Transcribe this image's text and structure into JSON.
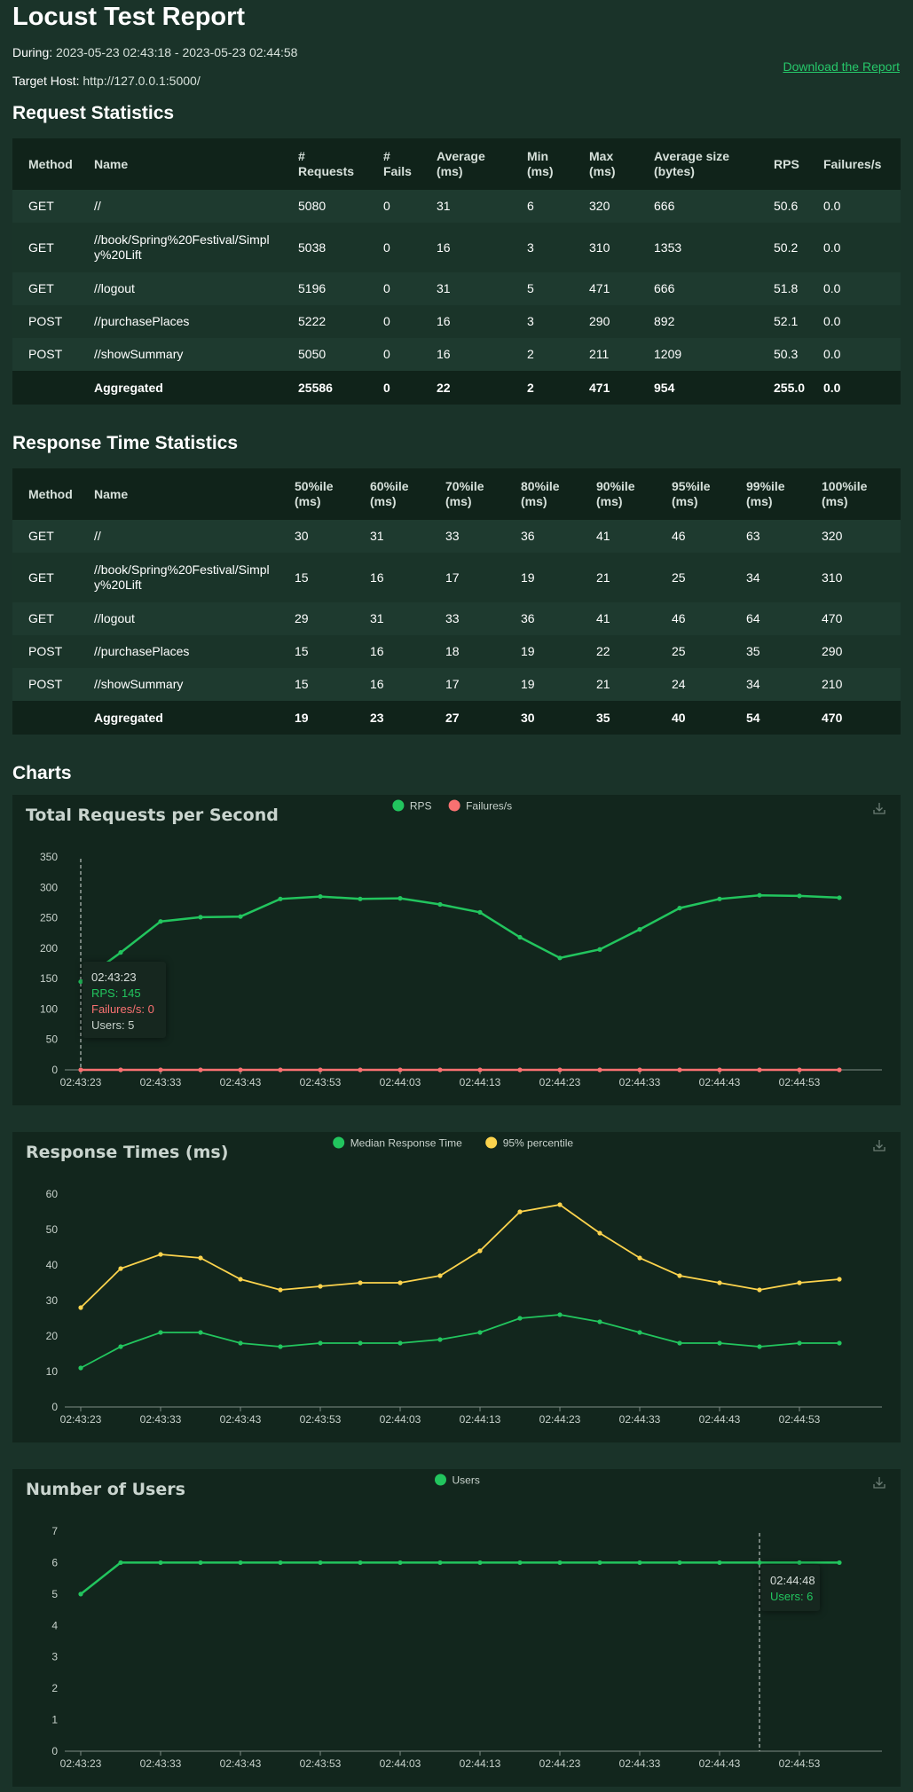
{
  "header": {
    "title": "Locust Test Report",
    "during_label": "During:",
    "during_value": "2023-05-23 02:43:18 - 2023-05-23 02:44:58",
    "target_label": "Target Host:",
    "target_value": "http://127.0.0.1:5000/",
    "download_label": "Download the Report"
  },
  "request_stats": {
    "title": "Request Statistics",
    "headers": [
      "Method",
      "Name",
      "# Requests",
      "# Fails",
      "Average (ms)",
      "Min (ms)",
      "Max (ms)",
      "Average size (bytes)",
      "RPS",
      "Failures/s"
    ],
    "rows": [
      [
        "GET",
        "//",
        "5080",
        "0",
        "31",
        "6",
        "320",
        "666",
        "50.6",
        "0.0"
      ],
      [
        "GET",
        "//book/Spring%20Festival/Simply%20Lift",
        "5038",
        "0",
        "16",
        "3",
        "310",
        "1353",
        "50.2",
        "0.0"
      ],
      [
        "GET",
        "//logout",
        "5196",
        "0",
        "31",
        "5",
        "471",
        "666",
        "51.8",
        "0.0"
      ],
      [
        "POST",
        "//purchasePlaces",
        "5222",
        "0",
        "16",
        "3",
        "290",
        "892",
        "52.1",
        "0.0"
      ],
      [
        "POST",
        "//showSummary",
        "5050",
        "0",
        "16",
        "2",
        "211",
        "1209",
        "50.3",
        "0.0"
      ]
    ],
    "aggregated": [
      "",
      "Aggregated",
      "25586",
      "0",
      "22",
      "2",
      "471",
      "954",
      "255.0",
      "0.0"
    ]
  },
  "response_stats": {
    "title": "Response Time Statistics",
    "headers": [
      "Method",
      "Name",
      "50%ile (ms)",
      "60%ile (ms)",
      "70%ile (ms)",
      "80%ile (ms)",
      "90%ile (ms)",
      "95%ile (ms)",
      "99%ile (ms)",
      "100%ile (ms)"
    ],
    "rows": [
      [
        "GET",
        "//",
        "30",
        "31",
        "33",
        "36",
        "41",
        "46",
        "63",
        "320"
      ],
      [
        "GET",
        "//book/Spring%20Festival/Simply%20Lift",
        "15",
        "16",
        "17",
        "19",
        "21",
        "25",
        "34",
        "310"
      ],
      [
        "GET",
        "//logout",
        "29",
        "31",
        "33",
        "36",
        "41",
        "46",
        "64",
        "470"
      ],
      [
        "POST",
        "//purchasePlaces",
        "15",
        "16",
        "18",
        "19",
        "22",
        "25",
        "35",
        "290"
      ],
      [
        "POST",
        "//showSummary",
        "15",
        "16",
        "17",
        "19",
        "21",
        "24",
        "34",
        "210"
      ]
    ],
    "aggregated": [
      "",
      "Aggregated",
      "19",
      "23",
      "27",
      "30",
      "35",
      "40",
      "54",
      "470"
    ]
  },
  "charts_title": "Charts",
  "colors": {
    "green": "#22c55e",
    "red": "#f87171",
    "yellow": "#fcd34d",
    "grid": "#4d5f57"
  },
  "icons": {
    "download": "download-icon"
  },
  "chart_data": [
    {
      "type": "line",
      "title": "Total Requests per Second",
      "x": [
        "02:43:23",
        "02:43:28",
        "02:43:33",
        "02:43:38",
        "02:43:43",
        "02:43:48",
        "02:43:53",
        "02:43:58",
        "02:44:03",
        "02:44:08",
        "02:44:13",
        "02:44:18",
        "02:44:23",
        "02:44:28",
        "02:44:33",
        "02:44:38",
        "02:44:43",
        "02:44:48",
        "02:44:53",
        "02:44:58"
      ],
      "xticks": [
        "02:43:23",
        "02:43:33",
        "02:43:43",
        "02:43:53",
        "02:44:03",
        "02:44:13",
        "02:44:23",
        "02:44:33",
        "02:44:43",
        "02:44:53"
      ],
      "ylim": [
        0,
        350
      ],
      "yticks": [
        0,
        50,
        100,
        150,
        200,
        250,
        300,
        350
      ],
      "legend": "top-center",
      "series": [
        {
          "name": "RPS",
          "color": "#22c55e",
          "values": [
            145,
            193,
            244,
            251,
            252,
            281,
            285,
            281,
            282,
            272,
            259,
            218,
            184,
            198,
            231,
            266,
            281,
            287,
            286,
            283
          ]
        },
        {
          "name": "Failures/s",
          "color": "#f87171",
          "values": [
            0,
            0,
            0,
            0,
            0,
            0,
            0,
            0,
            0,
            0,
            0,
            0,
            0,
            0,
            0,
            0,
            0,
            0,
            0,
            0
          ]
        }
      ],
      "tooltip": {
        "index": 0,
        "time": "02:43:23",
        "lines": [
          "RPS: 145",
          "Failures/s: 0",
          "Users: 5"
        ]
      }
    },
    {
      "type": "line",
      "title": "Response Times (ms)",
      "x": [
        "02:43:23",
        "02:43:28",
        "02:43:33",
        "02:43:38",
        "02:43:43",
        "02:43:48",
        "02:43:53",
        "02:43:58",
        "02:44:03",
        "02:44:08",
        "02:44:13",
        "02:44:18",
        "02:44:23",
        "02:44:28",
        "02:44:33",
        "02:44:38",
        "02:44:43",
        "02:44:48",
        "02:44:53",
        "02:44:58"
      ],
      "xticks": [
        "02:43:23",
        "02:43:33",
        "02:43:43",
        "02:43:53",
        "02:44:03",
        "02:44:13",
        "02:44:23",
        "02:44:33",
        "02:44:43",
        "02:44:53"
      ],
      "ylim": [
        0,
        60
      ],
      "yticks": [
        0,
        10,
        20,
        30,
        40,
        50,
        60
      ],
      "legend": "top-center",
      "series": [
        {
          "name": "Median Response Time",
          "color": "#22c55e",
          "values": [
            11,
            17,
            21,
            21,
            18,
            17,
            18,
            18,
            18,
            19,
            21,
            25,
            26,
            24,
            21,
            18,
            18,
            17,
            18,
            18
          ]
        },
        {
          "name": "95% percentile",
          "color": "#fcd34d",
          "values": [
            28,
            39,
            43,
            42,
            36,
            33,
            34,
            35,
            35,
            37,
            44,
            55,
            57,
            49,
            42,
            37,
            35,
            33,
            35,
            36
          ]
        }
      ]
    },
    {
      "type": "line",
      "title": "Number of Users",
      "x": [
        "02:43:23",
        "02:43:28",
        "02:43:33",
        "02:43:38",
        "02:43:43",
        "02:43:48",
        "02:43:53",
        "02:43:58",
        "02:44:03",
        "02:44:08",
        "02:44:13",
        "02:44:18",
        "02:44:23",
        "02:44:28",
        "02:44:33",
        "02:44:38",
        "02:44:43",
        "02:44:48",
        "02:44:53",
        "02:44:58"
      ],
      "xticks": [
        "02:43:23",
        "02:43:33",
        "02:43:43",
        "02:43:53",
        "02:44:03",
        "02:44:13",
        "02:44:23",
        "02:44:33",
        "02:44:43",
        "02:44:53"
      ],
      "ylim": [
        0,
        7
      ],
      "yticks": [
        0,
        1,
        2,
        3,
        4,
        5,
        6,
        7
      ],
      "legend": "top-center",
      "series": [
        {
          "name": "Users",
          "color": "#22c55e",
          "values": [
            5,
            6,
            6,
            6,
            6,
            6,
            6,
            6,
            6,
            6,
            6,
            6,
            6,
            6,
            6,
            6,
            6,
            6,
            6,
            6
          ]
        }
      ],
      "tooltip": {
        "index": 17,
        "time": "02:44:48",
        "lines": [
          "Users: 6"
        ]
      }
    }
  ]
}
